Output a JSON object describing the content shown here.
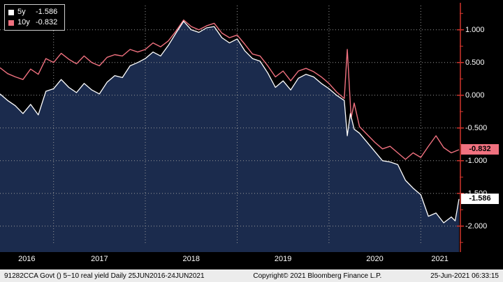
{
  "colors": {
    "background": "#000000",
    "area_fill": "#1b2b4d",
    "grid": "#9a9a9a",
    "axis": "#d0342c",
    "series_5y": "#ffffff",
    "series_10y": "#f0717f",
    "footer_bg": "#ececec"
  },
  "legend": {
    "items": [
      {
        "label": "5y",
        "value": "-1.586",
        "swatch": "#ffffff"
      },
      {
        "label": "10y",
        "value": "-0.832",
        "swatch": "#f0717f"
      }
    ]
  },
  "y_axis": {
    "ticks": [
      "1.000",
      "0.500",
      "0.000",
      "-0.500",
      "-1.000",
      "-1.500",
      "-2.000"
    ],
    "tick_values": [
      1,
      0.5,
      0,
      -0.5,
      -1,
      -1.5,
      -2
    ]
  },
  "x_axis": {
    "years": [
      "2016",
      "2017",
      "2018",
      "2019",
      "2020",
      "2021"
    ]
  },
  "last_price_labels": [
    {
      "series": "10y",
      "text": "-0.832",
      "value": -0.832,
      "bg": "#f0717f"
    },
    {
      "series": "5y",
      "text": "-1.586",
      "value": -1.586,
      "bg": "#ffffff"
    }
  ],
  "footer": {
    "left": "91282CCA Govt () 5~10 real yield  Daily 25JUN2016-24JUN2021",
    "center": "Copyright© 2021 Bloomberg Finance L.P.",
    "right": "25-Jun-2021 06:33:15"
  },
  "chart_data": {
    "type": "line",
    "title": "91282CCA Govt () 5~10 real yield",
    "period": "Daily 25JUN2016-24JUN2021",
    "x_unit": "months since Jun-2016",
    "x_range": [
      0,
      60
    ],
    "ylim": [
      -2.29,
      1.37
    ],
    "year_boundaries": [
      7,
      19,
      31,
      43,
      55
    ],
    "legend_position": "top-left",
    "grid": "dotted",
    "series": [
      {
        "name": "5y",
        "color": "#ffffff",
        "fill": true,
        "last": -1.586,
        "points": [
          [
            0,
            0.02
          ],
          [
            1,
            -0.08
          ],
          [
            2,
            -0.16
          ],
          [
            3,
            -0.28
          ],
          [
            4,
            -0.14
          ],
          [
            5,
            -0.3
          ],
          [
            6,
            0.06
          ],
          [
            7,
            0.1
          ],
          [
            8,
            0.24
          ],
          [
            9,
            0.12
          ],
          [
            10,
            0.04
          ],
          [
            11,
            0.18
          ],
          [
            12,
            0.08
          ],
          [
            13,
            0.02
          ],
          [
            14,
            0.2
          ],
          [
            15,
            0.3
          ],
          [
            16,
            0.27
          ],
          [
            17,
            0.45
          ],
          [
            18,
            0.5
          ],
          [
            19,
            0.56
          ],
          [
            20,
            0.66
          ],
          [
            21,
            0.6
          ],
          [
            22,
            0.76
          ],
          [
            23,
            0.95
          ],
          [
            24,
            1.13
          ],
          [
            25,
            1.0
          ],
          [
            26,
            0.96
          ],
          [
            27,
            1.03
          ],
          [
            28,
            1.05
          ],
          [
            29,
            0.88
          ],
          [
            30,
            0.8
          ],
          [
            31,
            0.86
          ],
          [
            32,
            0.68
          ],
          [
            33,
            0.56
          ],
          [
            34,
            0.52
          ],
          [
            35,
            0.34
          ],
          [
            36,
            0.12
          ],
          [
            37,
            0.22
          ],
          [
            38,
            0.08
          ],
          [
            39,
            0.26
          ],
          [
            40,
            0.32
          ],
          [
            41,
            0.28
          ],
          [
            42,
            0.18
          ],
          [
            43,
            0.1
          ],
          [
            44,
            0.0
          ],
          [
            45,
            -0.08
          ],
          [
            45.4,
            -0.62
          ],
          [
            45.8,
            -0.28
          ],
          [
            46.3,
            -0.52
          ],
          [
            47,
            -0.58
          ],
          [
            48,
            -0.72
          ],
          [
            49,
            -0.86
          ],
          [
            50,
            -1.0
          ],
          [
            51,
            -1.02
          ],
          [
            52,
            -1.06
          ],
          [
            53,
            -1.3
          ],
          [
            54,
            -1.42
          ],
          [
            55,
            -1.52
          ],
          [
            56,
            -1.85
          ],
          [
            57,
            -1.8
          ],
          [
            58,
            -1.95
          ],
          [
            59,
            -1.86
          ],
          [
            59.5,
            -1.92
          ],
          [
            60,
            -1.586
          ]
        ]
      },
      {
        "name": "10y",
        "color": "#f0717f",
        "fill": false,
        "last": -0.832,
        "points": [
          [
            0,
            0.42
          ],
          [
            1,
            0.33
          ],
          [
            2,
            0.28
          ],
          [
            3,
            0.24
          ],
          [
            4,
            0.4
          ],
          [
            5,
            0.32
          ],
          [
            6,
            0.56
          ],
          [
            7,
            0.5
          ],
          [
            8,
            0.64
          ],
          [
            9,
            0.55
          ],
          [
            10,
            0.48
          ],
          [
            11,
            0.6
          ],
          [
            12,
            0.5
          ],
          [
            13,
            0.45
          ],
          [
            14,
            0.58
          ],
          [
            15,
            0.62
          ],
          [
            16,
            0.6
          ],
          [
            17,
            0.7
          ],
          [
            18,
            0.66
          ],
          [
            19,
            0.7
          ],
          [
            20,
            0.8
          ],
          [
            21,
            0.74
          ],
          [
            22,
            0.83
          ],
          [
            23,
            0.98
          ],
          [
            24,
            1.15
          ],
          [
            25,
            1.05
          ],
          [
            26,
            1.0
          ],
          [
            27,
            1.06
          ],
          [
            28,
            1.1
          ],
          [
            29,
            0.95
          ],
          [
            30,
            0.88
          ],
          [
            31,
            0.92
          ],
          [
            32,
            0.78
          ],
          [
            33,
            0.63
          ],
          [
            34,
            0.6
          ],
          [
            35,
            0.45
          ],
          [
            36,
            0.28
          ],
          [
            37,
            0.37
          ],
          [
            38,
            0.22
          ],
          [
            39,
            0.37
          ],
          [
            40,
            0.41
          ],
          [
            41,
            0.36
          ],
          [
            42,
            0.28
          ],
          [
            43,
            0.18
          ],
          [
            44,
            0.05
          ],
          [
            45,
            -0.05
          ],
          [
            45.4,
            0.7
          ],
          [
            45.9,
            -0.35
          ],
          [
            46.3,
            -0.12
          ],
          [
            47,
            -0.48
          ],
          [
            48,
            -0.6
          ],
          [
            49,
            -0.72
          ],
          [
            50,
            -0.82
          ],
          [
            51,
            -0.78
          ],
          [
            52,
            -0.88
          ],
          [
            53,
            -0.98
          ],
          [
            54,
            -0.88
          ],
          [
            55,
            -0.95
          ],
          [
            56,
            -0.78
          ],
          [
            57,
            -0.62
          ],
          [
            58,
            -0.8
          ],
          [
            59,
            -0.88
          ],
          [
            60,
            -0.832
          ]
        ]
      }
    ]
  }
}
